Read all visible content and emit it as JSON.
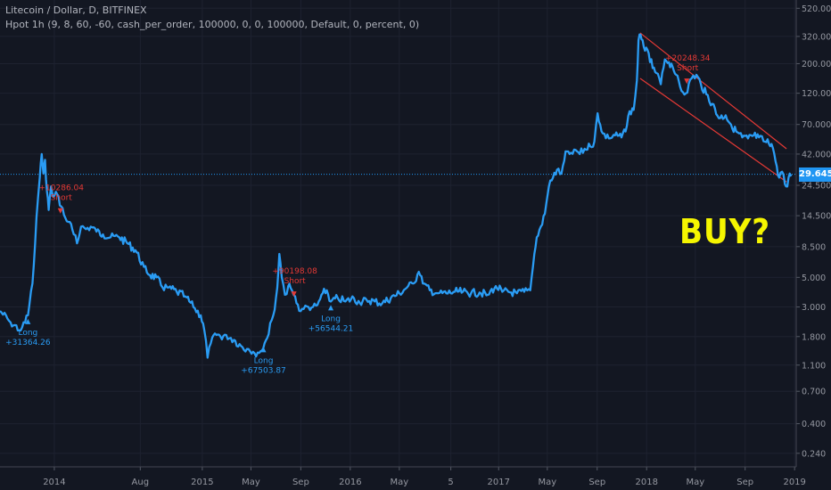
{
  "legend": {
    "title": "Litecoin / Dollar, D, BITFINEX",
    "indicator": "Hpot 1h (9, 8, 60, -60, cash_per_order, 100000, 0, 0, 100000, Default, 0, percent, 0)"
  },
  "annotation": {
    "text": "BUY?",
    "color": "#f5f500"
  },
  "current_price": {
    "label": "29.645",
    "value": 29.645,
    "color": "#2196f3"
  },
  "colors": {
    "background": "#131722",
    "grid": "#1e2230",
    "line": "#2a9cf4",
    "short": "#e53935",
    "long": "#2a9cf4"
  },
  "chart_data": {
    "type": "line",
    "y_scale": "log",
    "y_ticks": [
      {
        "label": "520.000",
        "value": 520
      },
      {
        "label": "320.000",
        "value": 320
      },
      {
        "label": "200.000",
        "value": 200
      },
      {
        "label": "120.000",
        "value": 120
      },
      {
        "label": "70.000",
        "value": 70
      },
      {
        "label": "42.000",
        "value": 42
      },
      {
        "label": "24.500",
        "value": 24.5
      },
      {
        "label": "14.500",
        "value": 14.5
      },
      {
        "label": "8.500",
        "value": 8.5
      },
      {
        "label": "5.000",
        "value": 5
      },
      {
        "label": "3.000",
        "value": 3
      },
      {
        "label": "1.800",
        "value": 1.8
      },
      {
        "label": "1.100",
        "value": 1.1
      },
      {
        "label": "0.700",
        "value": 0.7
      },
      {
        "label": "0.400",
        "value": 0.4
      },
      {
        "label": "0.240",
        "value": 0.24
      }
    ],
    "x_ticks": [
      {
        "label": "2014",
        "date": "2014-01-01"
      },
      {
        "label": "Aug",
        "date": "2014-08-01"
      },
      {
        "label": "2015",
        "date": "2015-01-01"
      },
      {
        "label": "May",
        "date": "2015-05-01"
      },
      {
        "label": "Sep",
        "date": "2015-09-01"
      },
      {
        "label": "2016",
        "date": "2016-01-01"
      },
      {
        "label": "May",
        "date": "2016-05-01"
      },
      {
        "label": "5",
        "date": "2016-09-05"
      },
      {
        "label": "2017",
        "date": "2017-01-01"
      },
      {
        "label": "May",
        "date": "2017-05-01"
      },
      {
        "label": "Sep",
        "date": "2017-09-01"
      },
      {
        "label": "2018",
        "date": "2018-01-01"
      },
      {
        "label": "May",
        "date": "2018-05-01"
      },
      {
        "label": "Sep",
        "date": "2018-09-01"
      },
      {
        "label": "2019",
        "date": "2019-01-01"
      }
    ],
    "x_range": [
      "2013-08-20",
      "2019-01-05"
    ],
    "ylim": [
      0.19,
      600
    ],
    "series": [
      {
        "points": [
          [
            "2013-08-20",
            2.8
          ],
          [
            "2013-09-15",
            2.3
          ],
          [
            "2013-10-10",
            2.0
          ],
          [
            "2013-10-28",
            2.6
          ],
          [
            "2013-11-08",
            4.5
          ],
          [
            "2013-11-18",
            14
          ],
          [
            "2013-11-26",
            28
          ],
          [
            "2013-12-01",
            42
          ],
          [
            "2013-12-05",
            30
          ],
          [
            "2013-12-09",
            38
          ],
          [
            "2013-12-14",
            22
          ],
          [
            "2013-12-18",
            16
          ],
          [
            "2013-12-24",
            24
          ],
          [
            "2013-12-30",
            20
          ],
          [
            "2014-01-08",
            21
          ],
          [
            "2014-01-18",
            17
          ],
          [
            "2014-01-28",
            14
          ],
          [
            "2014-02-08",
            13
          ],
          [
            "2014-02-18",
            10.5
          ],
          [
            "2014-02-26",
            9
          ],
          [
            "2014-03-08",
            12
          ],
          [
            "2014-03-20",
            11.5
          ],
          [
            "2014-04-01",
            12
          ],
          [
            "2014-04-15",
            11
          ],
          [
            "2014-05-01",
            10.5
          ],
          [
            "2014-05-20",
            10
          ],
          [
            "2014-06-10",
            10
          ],
          [
            "2014-06-30",
            9
          ],
          [
            "2014-07-20",
            8
          ],
          [
            "2014-08-10",
            6
          ],
          [
            "2014-08-25",
            5.2
          ],
          [
            "2014-09-10",
            5
          ],
          [
            "2014-09-25",
            4.2
          ],
          [
            "2014-10-10",
            4.2
          ],
          [
            "2014-10-30",
            3.9
          ],
          [
            "2014-11-20",
            3.6
          ],
          [
            "2014-12-10",
            3
          ],
          [
            "2014-12-28",
            2.6
          ],
          [
            "2015-01-06",
            2.0
          ],
          [
            "2015-01-14",
            1.25
          ],
          [
            "2015-01-22",
            1.6
          ],
          [
            "2015-02-01",
            1.9
          ],
          [
            "2015-02-15",
            1.8
          ],
          [
            "2015-03-01",
            1.85
          ],
          [
            "2015-03-20",
            1.7
          ],
          [
            "2015-04-10",
            1.5
          ],
          [
            "2015-04-25",
            1.45
          ],
          [
            "2015-05-10",
            1.35
          ],
          [
            "2015-05-25",
            1.4
          ],
          [
            "2015-06-10",
            1.75
          ],
          [
            "2015-06-25",
            2.6
          ],
          [
            "2015-07-05",
            4.2
          ],
          [
            "2015-07-10",
            7.5
          ],
          [
            "2015-07-16",
            5.0
          ],
          [
            "2015-07-24",
            3.7
          ],
          [
            "2015-08-01",
            4.3
          ],
          [
            "2015-08-10",
            4.0
          ],
          [
            "2015-08-18",
            3.6
          ],
          [
            "2015-08-28",
            2.8
          ],
          [
            "2015-09-08",
            2.9
          ],
          [
            "2015-09-20",
            3.0
          ],
          [
            "2015-10-01",
            3.0
          ],
          [
            "2015-10-12",
            3.1
          ],
          [
            "2015-10-25",
            3.8
          ],
          [
            "2015-11-04",
            4.0
          ],
          [
            "2015-11-14",
            3.3
          ],
          [
            "2015-12-01",
            3.5
          ],
          [
            "2015-12-20",
            3.3
          ],
          [
            "2016-01-10",
            3.5
          ],
          [
            "2016-01-25",
            3.2
          ],
          [
            "2016-02-10",
            3.4
          ],
          [
            "2016-03-01",
            3.3
          ],
          [
            "2016-03-20",
            3.2
          ],
          [
            "2016-04-10",
            3.5
          ],
          [
            "2016-05-01",
            3.8
          ],
          [
            "2016-05-20",
            4.2
          ],
          [
            "2016-06-05",
            4.5
          ],
          [
            "2016-06-18",
            5.5
          ],
          [
            "2016-06-28",
            4.5
          ],
          [
            "2016-07-15",
            4.0
          ],
          [
            "2016-08-05",
            3.8
          ],
          [
            "2016-08-25",
            3.8
          ],
          [
            "2016-09-15",
            3.9
          ],
          [
            "2016-10-05",
            3.9
          ],
          [
            "2016-10-25",
            3.8
          ],
          [
            "2016-11-15",
            3.85
          ],
          [
            "2016-12-05",
            3.7
          ],
          [
            "2016-12-25",
            4.3
          ],
          [
            "2017-01-10",
            3.9
          ],
          [
            "2017-01-25",
            3.9
          ],
          [
            "2017-02-15",
            3.8
          ],
          [
            "2017-03-05",
            3.9
          ],
          [
            "2017-03-20",
            4.0
          ],
          [
            "2017-03-30",
            7.5
          ],
          [
            "2017-04-05",
            10
          ],
          [
            "2017-04-15",
            12
          ],
          [
            "2017-04-25",
            15
          ],
          [
            "2017-05-05",
            24
          ],
          [
            "2017-05-15",
            28
          ],
          [
            "2017-05-25",
            32
          ],
          [
            "2017-06-05",
            30
          ],
          [
            "2017-06-15",
            44
          ],
          [
            "2017-06-25",
            42
          ],
          [
            "2017-07-10",
            45
          ],
          [
            "2017-07-20",
            42
          ],
          [
            "2017-08-01",
            46
          ],
          [
            "2017-08-15",
            48
          ],
          [
            "2017-08-25",
            52
          ],
          [
            "2017-09-02",
            85
          ],
          [
            "2017-09-15",
            60
          ],
          [
            "2017-09-30",
            55
          ],
          [
            "2017-10-15",
            58
          ],
          [
            "2017-10-31",
            56
          ],
          [
            "2017-11-10",
            62
          ],
          [
            "2017-11-20",
            88
          ],
          [
            "2017-11-30",
            90
          ],
          [
            "2017-12-08",
            150
          ],
          [
            "2017-12-12",
            300
          ],
          [
            "2017-12-17",
            330
          ],
          [
            "2017-12-22",
            300
          ],
          [
            "2017-12-28",
            250
          ],
          [
            "2018-01-06",
            240
          ],
          [
            "2018-01-16",
            185
          ],
          [
            "2018-01-25",
            170
          ],
          [
            "2018-02-05",
            140
          ],
          [
            "2018-02-15",
            215
          ],
          [
            "2018-02-25",
            205
          ],
          [
            "2018-03-06",
            190
          ],
          [
            "2018-03-15",
            165
          ],
          [
            "2018-03-28",
            125
          ],
          [
            "2018-04-08",
            120
          ],
          [
            "2018-04-22",
            155
          ],
          [
            "2018-05-04",
            165
          ],
          [
            "2018-05-15",
            140
          ],
          [
            "2018-05-28",
            118
          ],
          [
            "2018-06-12",
            100
          ],
          [
            "2018-06-28",
            78
          ],
          [
            "2018-07-15",
            82
          ],
          [
            "2018-07-28",
            70
          ],
          [
            "2018-08-10",
            62
          ],
          [
            "2018-08-25",
            56
          ],
          [
            "2018-09-08",
            55
          ],
          [
            "2018-09-22",
            58
          ],
          [
            "2018-10-05",
            56
          ],
          [
            "2018-10-20",
            52
          ],
          [
            "2018-11-05",
            50
          ],
          [
            "2018-11-12",
            42
          ],
          [
            "2018-11-18",
            34
          ],
          [
            "2018-11-24",
            28
          ],
          [
            "2018-12-01",
            31
          ],
          [
            "2018-12-08",
            25
          ],
          [
            "2018-12-14",
            24
          ],
          [
            "2018-12-20",
            30
          ],
          [
            "2018-12-24",
            29.6
          ]
        ]
      }
    ],
    "channel_lines": [
      {
        "from": [
          "2017-12-16",
          340
        ],
        "to": [
          "2018-12-12",
          46
        ]
      },
      {
        "from": [
          "2017-12-16",
          155
        ],
        "to": [
          "2018-12-12",
          26
        ]
      }
    ],
    "signals": [
      {
        "type": "long",
        "label_top": "Long",
        "label_bottom": "+31364.26",
        "date": "2013-10-28",
        "price": 2.6
      },
      {
        "type": "short",
        "label_top": "+10286.04",
        "label_bottom": "Short",
        "date": "2014-01-16",
        "price": 16
      },
      {
        "type": "long",
        "label_top": "Long",
        "label_bottom": "+67503.87",
        "date": "2015-06-01",
        "price": 1.6
      },
      {
        "type": "short",
        "label_top": "+90198.08",
        "label_bottom": "Short",
        "date": "2015-08-15",
        "price": 3.8
      },
      {
        "type": "long",
        "label_top": "Long",
        "label_bottom": "+56544.21",
        "date": "2015-11-14",
        "price": 3.3
      },
      {
        "type": "short",
        "label_top": "+20248.34",
        "label_bottom": "Short",
        "date": "2018-04-10",
        "price": 150
      }
    ]
  }
}
